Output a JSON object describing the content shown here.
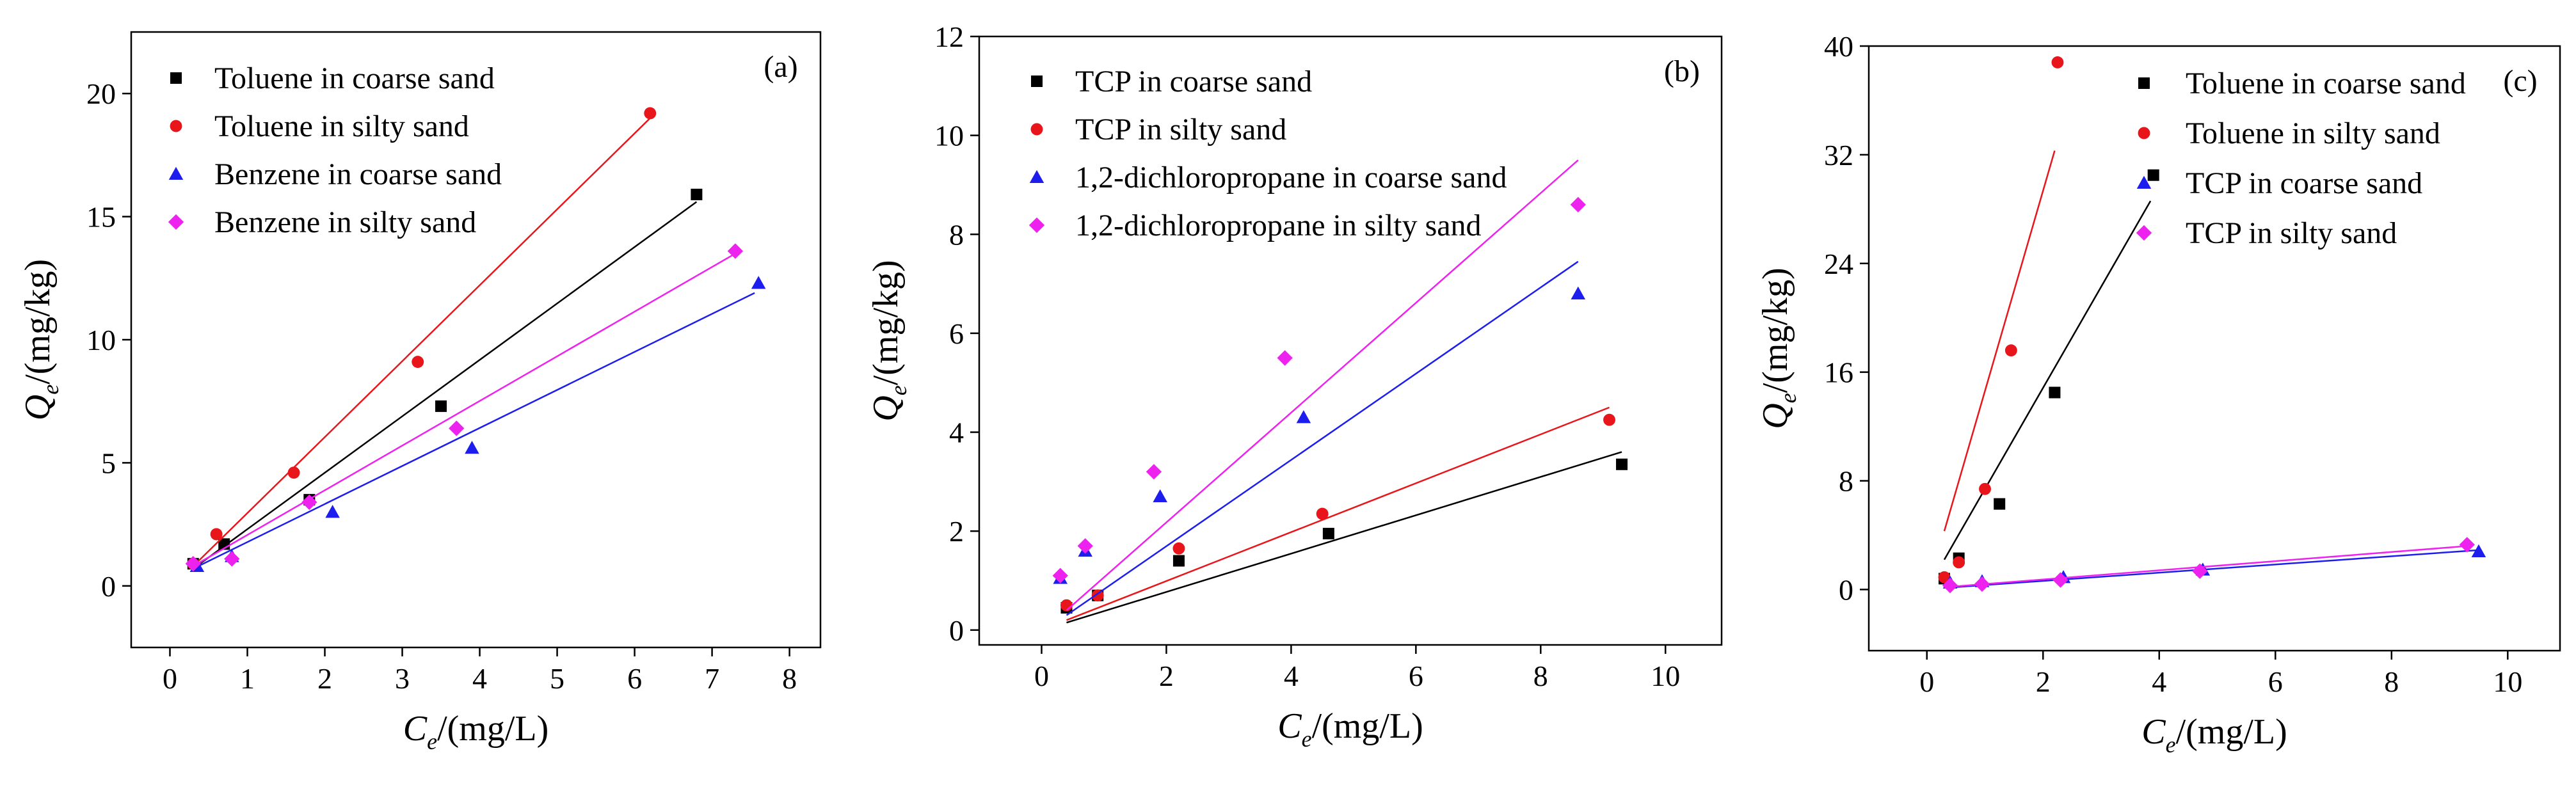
{
  "figure": {
    "colors": {
      "black": "#000000",
      "red": "#e8161b",
      "blue": "#1d1dee",
      "magenta": "#ee22ee"
    }
  },
  "chart_data": [
    {
      "type": "scatter",
      "panel_label": "(a)",
      "xlabel": "C",
      "xlabel_sub": "e",
      "xlabel_unit": "/(mg/L)",
      "ylabel": "Q",
      "ylabel_sub": "e",
      "ylabel_unit": "/(mg/kg)",
      "xlim": [
        -0.5,
        8.4
      ],
      "ylim": [
        -2.5,
        22.5
      ],
      "xticks": [
        0,
        1,
        2,
        3,
        4,
        5,
        6,
        7,
        8
      ],
      "yticks": [
        0,
        5,
        10,
        15,
        20
      ],
      "legend_position": "top-left",
      "series": [
        {
          "name": "Toluene in coarse sand",
          "marker": "square",
          "color": "#000000",
          "points": [
            [
              0.3,
              0.9
            ],
            [
              0.7,
              1.7
            ],
            [
              1.8,
              3.5
            ],
            [
              3.5,
              7.3
            ],
            [
              6.8,
              15.9
            ]
          ],
          "fit": [
            [
              0.3,
              0.7
            ],
            [
              6.8,
              15.6
            ]
          ]
        },
        {
          "name": "Toluene in silty sand",
          "marker": "circle",
          "color": "#e8161b",
          "points": [
            [
              0.3,
              0.9
            ],
            [
              0.6,
              2.1
            ],
            [
              1.6,
              4.6
            ],
            [
              3.2,
              9.1
            ],
            [
              6.2,
              19.2
            ]
          ],
          "fit": [
            [
              0.3,
              0.8
            ],
            [
              6.2,
              19.0
            ]
          ]
        },
        {
          "name": "Benzene in coarse sand",
          "marker": "triangle",
          "color": "#1d1dee",
          "points": [
            [
              0.35,
              0.8
            ],
            [
              0.8,
              1.2
            ],
            [
              2.1,
              3.0
            ],
            [
              3.9,
              5.6
            ],
            [
              7.6,
              12.3
            ]
          ],
          "fit": [
            [
              0.3,
              0.7
            ],
            [
              7.55,
              11.9
            ]
          ]
        },
        {
          "name": "Benzene in silty sand",
          "marker": "diamond",
          "color": "#ee22ee",
          "points": [
            [
              0.3,
              0.9
            ],
            [
              0.8,
              1.1
            ],
            [
              1.8,
              3.4
            ],
            [
              3.7,
              6.4
            ],
            [
              7.3,
              13.6
            ]
          ],
          "fit": [
            [
              0.3,
              0.8
            ],
            [
              7.3,
              13.5
            ]
          ]
        }
      ]
    },
    {
      "type": "scatter",
      "panel_label": "(b)",
      "xlabel": "C",
      "xlabel_sub": "e",
      "xlabel_unit": "/(mg/L)",
      "ylabel": "Q",
      "ylabel_sub": "e",
      "ylabel_unit": "/(mg/kg)",
      "xlim": [
        -1.0,
        10.9
      ],
      "ylim": [
        -0.3,
        12
      ],
      "xticks": [
        0,
        2,
        4,
        6,
        8,
        10
      ],
      "yticks": [
        0,
        2,
        4,
        6,
        8,
        10,
        12
      ],
      "legend_position": "top-left",
      "series": [
        {
          "name": "TCP in coarse sand",
          "marker": "square",
          "color": "#000000",
          "points": [
            [
              0.4,
              0.45
            ],
            [
              0.9,
              0.7
            ],
            [
              2.2,
              1.4
            ],
            [
              4.6,
              1.95
            ],
            [
              9.3,
              3.35
            ]
          ],
          "fit": [
            [
              0.4,
              0.15
            ],
            [
              9.3,
              3.6
            ]
          ]
        },
        {
          "name": "TCP in silty sand",
          "marker": "circle",
          "color": "#e8161b",
          "points": [
            [
              0.4,
              0.5
            ],
            [
              0.9,
              0.7
            ],
            [
              2.2,
              1.65
            ],
            [
              4.5,
              2.35
            ],
            [
              9.1,
              4.25
            ]
          ],
          "fit": [
            [
              0.4,
              0.2
            ],
            [
              9.1,
              4.5
            ]
          ]
        },
        {
          "name": "1,2-dichloropropane in coarse sand",
          "marker": "triangle",
          "color": "#1d1dee",
          "points": [
            [
              0.3,
              1.05
            ],
            [
              0.7,
              1.6
            ],
            [
              1.9,
              2.7
            ],
            [
              4.2,
              4.3
            ],
            [
              8.6,
              6.8
            ]
          ],
          "fit": [
            [
              0.4,
              0.3
            ],
            [
              8.6,
              7.45
            ]
          ]
        },
        {
          "name": "1,2-dichloropropane in silty sand",
          "marker": "diamond",
          "color": "#ee22ee",
          "points": [
            [
              0.3,
              1.1
            ],
            [
              0.7,
              1.7
            ],
            [
              1.8,
              3.2
            ],
            [
              3.9,
              5.5
            ],
            [
              8.6,
              8.6
            ]
          ],
          "fit": [
            [
              0.4,
              0.4
            ],
            [
              8.6,
              9.5
            ]
          ]
        }
      ]
    },
    {
      "type": "scatter",
      "panel_label": "(c)",
      "xlabel": "C",
      "xlabel_sub": "e",
      "xlabel_unit": "/(mg/L)",
      "ylabel": "Q",
      "ylabel_sub": "e",
      "ylabel_unit": "/(mg/kg)",
      "xlim": [
        -1.0,
        10.9
      ],
      "ylim": [
        -4.5,
        40
      ],
      "xticks": [
        0,
        2,
        4,
        6,
        8,
        10
      ],
      "yticks": [
        0,
        8,
        16,
        24,
        32,
        40
      ],
      "legend_position": "top-right",
      "series": [
        {
          "name": "Toluene in coarse sand",
          "marker": "square",
          "color": "#000000",
          "points": [
            [
              0.3,
              0.8
            ],
            [
              0.55,
              2.3
            ],
            [
              1.25,
              6.3
            ],
            [
              2.2,
              14.5
            ],
            [
              3.9,
              30.5
            ]
          ],
          "fit": [
            [
              0.3,
              2.2
            ],
            [
              3.85,
              28.6
            ]
          ]
        },
        {
          "name": "Toluene in silty sand",
          "marker": "circle",
          "color": "#e8161b",
          "points": [
            [
              0.3,
              0.9
            ],
            [
              0.55,
              2.0
            ],
            [
              1.0,
              7.4
            ],
            [
              1.45,
              17.6
            ],
            [
              2.25,
              38.8
            ]
          ],
          "fit": [
            [
              0.3,
              4.3
            ],
            [
              2.2,
              32.3
            ]
          ]
        },
        {
          "name": "TCP in coarse sand",
          "marker": "triangle",
          "color": "#1d1dee",
          "points": [
            [
              0.4,
              0.5
            ],
            [
              0.95,
              0.6
            ],
            [
              2.35,
              0.9
            ],
            [
              4.75,
              1.45
            ],
            [
              9.5,
              2.8
            ]
          ],
          "fit": [
            [
              0.4,
              0.15
            ],
            [
              9.5,
              2.9
            ]
          ]
        },
        {
          "name": "TCP in silty sand",
          "marker": "diamond",
          "color": "#ee22ee",
          "points": [
            [
              0.4,
              0.3
            ],
            [
              0.95,
              0.4
            ],
            [
              2.3,
              0.7
            ],
            [
              4.7,
              1.35
            ],
            [
              9.3,
              3.3
            ]
          ],
          "fit": [
            [
              0.4,
              0.2
            ],
            [
              9.3,
              3.2
            ]
          ]
        }
      ]
    }
  ]
}
